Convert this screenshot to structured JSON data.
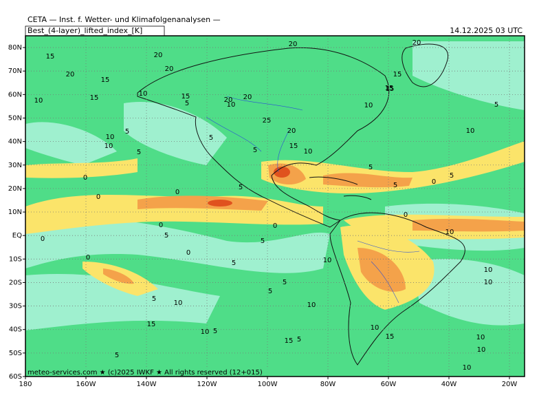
{
  "header": {
    "title": "CETA — Inst. f. Wetter- und Klimafolgenanalysen —",
    "subtitle": "Best_(4-layer)_lifted_index_[K]",
    "datetime": "14.12.2025 03 UTC"
  },
  "map": {
    "xlim": [
      -180,
      -15
    ],
    "ylim": [
      -60,
      85
    ],
    "xticks": [
      {
        "value": -180,
        "label": "180"
      },
      {
        "value": -160,
        "label": "160W"
      },
      {
        "value": -140,
        "label": "140W"
      },
      {
        "value": -120,
        "label": "120W"
      },
      {
        "value": -100,
        "label": "100W"
      },
      {
        "value": -80,
        "label": "80W"
      },
      {
        "value": -60,
        "label": "60W"
      },
      {
        "value": -40,
        "label": "40W"
      },
      {
        "value": -20,
        "label": "20W"
      }
    ],
    "yticks": [
      {
        "value": 80,
        "label": "80N"
      },
      {
        "value": 70,
        "label": "70N"
      },
      {
        "value": 60,
        "label": "60N"
      },
      {
        "value": 50,
        "label": "50N"
      },
      {
        "value": 40,
        "label": "40N"
      },
      {
        "value": 30,
        "label": "30N"
      },
      {
        "value": 20,
        "label": "20N"
      },
      {
        "value": 10,
        "label": "10N"
      },
      {
        "value": 0,
        "label": "EQ"
      },
      {
        "value": -10,
        "label": "10S"
      },
      {
        "value": -20,
        "label": "20S"
      },
      {
        "value": -30,
        "label": "30S"
      },
      {
        "value": -40,
        "label": "40S"
      },
      {
        "value": -50,
        "label": "50S"
      },
      {
        "value": -60,
        "label": "60S"
      }
    ],
    "contour_labels": [
      15,
      20,
      20,
      15,
      20,
      10,
      10,
      15,
      15,
      20,
      20,
      10,
      20,
      5,
      15,
      5,
      10,
      10,
      5,
      25,
      20,
      15,
      10,
      5,
      5,
      0,
      5,
      0,
      0,
      0,
      5,
      0,
      0,
      5,
      0,
      0,
      5,
      10,
      5,
      10,
      10,
      15,
      5,
      10,
      5,
      5,
      15,
      5,
      10,
      0,
      5,
      5,
      0,
      10,
      5,
      10,
      10,
      15,
      10,
      5,
      20,
      15,
      10,
      10,
      15,
      5,
      10,
      10
    ],
    "footer": "meteo-services.com ★ (c)2025 IWKF ★ All rights reserved (12+015)"
  }
}
